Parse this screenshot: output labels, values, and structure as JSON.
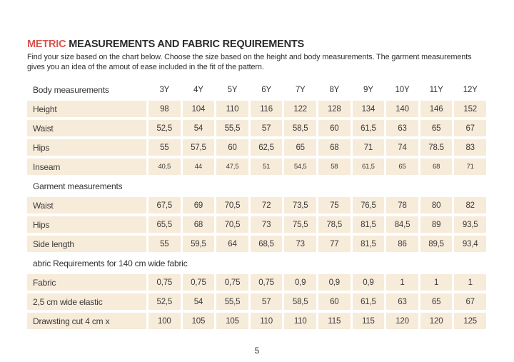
{
  "colors": {
    "accent": "#d9534f",
    "cell_bg": "#f7ebda"
  },
  "page": {
    "title_accent": "METRIC",
    "title_rest": " MEASUREMENTS AND FABRIC REQUIREMENTS",
    "intro": "Find your size based on the chart below. Choose the size based on the height and body measurements. The garment measurements gives you an idea of the amout of ease included in the fit of the pattern.",
    "page_number": "5"
  },
  "table": {
    "sizes": [
      "3Y",
      "4Y",
      "5Y",
      "6Y",
      "7Y",
      "8Y",
      "9Y",
      "10Y",
      "11Y",
      "12Y"
    ],
    "sections": [
      {
        "header": "Body measurements",
        "show_sizes": true,
        "rows": [
          {
            "label": "Height",
            "values": [
              "98",
              "104",
              "110",
              "116",
              "122",
              "128",
              "134",
              "140",
              "146",
              "152"
            ]
          },
          {
            "label": "Waist",
            "values": [
              "52,5",
              "54",
              "55,5",
              "57",
              "58,5",
              "60",
              "61,5",
              "63",
              "65",
              "67"
            ]
          },
          {
            "label": "Hips",
            "values": [
              "55",
              "57,5",
              "60",
              "62,5",
              "65",
              "68",
              "71",
              "74",
              "78.5",
              "83"
            ]
          },
          {
            "label": "Inseam",
            "small": true,
            "values": [
              "40,5",
              "44",
              "47,5",
              "51",
              "54,5",
              "58",
              "61,5",
              "65",
              "68",
              "71"
            ]
          }
        ]
      },
      {
        "header": "Garment measurements",
        "show_sizes": false,
        "rows": [
          {
            "label": "Waist",
            "values": [
              "67,5",
              "69",
              "70,5",
              "72",
              "73,5",
              "75",
              "76,5",
              "78",
              "80",
              "82"
            ]
          },
          {
            "label": "Hips",
            "values": [
              "65,5",
              "68",
              "70,5",
              "73",
              "75,5",
              "78,5",
              "81,5",
              "84,5",
              "89",
              "93,5"
            ]
          },
          {
            "label": "Side length",
            "values": [
              "55",
              "59,5",
              "64",
              "68,5",
              "73",
              "77",
              "81,5",
              "86",
              "89,5",
              "93,4"
            ]
          }
        ]
      },
      {
        "header": "abric Requirements for 140 cm wide fabric",
        "show_sizes": false,
        "rows": [
          {
            "label": "Fabric",
            "values": [
              "0,75",
              "0,75",
              "0,75",
              "0,75",
              "0,9",
              "0,9",
              "0,9",
              "1",
              "1",
              "1"
            ]
          },
          {
            "label": "2,5 cm wide elastic",
            "values": [
              "52,5",
              "54",
              "55,5",
              "57",
              "58,5",
              "60",
              "61,5",
              "63",
              "65",
              "67"
            ]
          },
          {
            "label": "Drawsting cut 4 cm x",
            "values": [
              "100",
              "105",
              "105",
              "110",
              "110",
              "115",
              "115",
              "120",
              "120",
              "125"
            ]
          }
        ]
      }
    ]
  }
}
